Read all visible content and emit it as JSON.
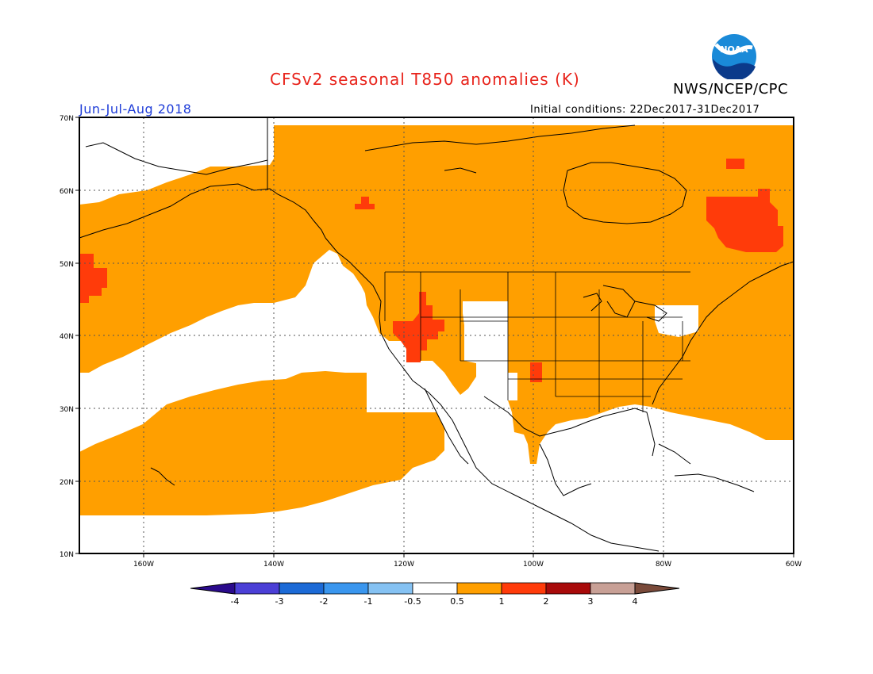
{
  "title": "CFSv2 seasonal T850 anomalies (K)",
  "agency": "NWS/NCEP/CPC",
  "logo_text": "NOAA",
  "season": "Jun-Jul-Aug 2018",
  "initial_conditions": "Initial conditions: 22Dec2017-31Dec2017",
  "axes": {
    "lon_labels": [
      "160W",
      "140W",
      "120W",
      "100W",
      "80W",
      "60W"
    ],
    "lat_labels": [
      "70N",
      "60N",
      "50N",
      "40N",
      "30N",
      "20N",
      "10N"
    ]
  },
  "colorbar": {
    "labels": [
      "-4",
      "-3",
      "-2",
      "-1",
      "-0.5",
      "0.5",
      "1",
      "2",
      "3",
      "4"
    ],
    "colors": [
      "#2a0a8c",
      "#4b3fd6",
      "#1c6ad6",
      "#3a96ee",
      "#85c2f3",
      "#ffffff",
      "#ff9f00",
      "#ff3b0a",
      "#a80a0a",
      "#c8a096",
      "#7a4a3a"
    ]
  },
  "colors": {
    "anomaly_0_5_to_1": "#ff9f00",
    "anomaly_1_to_2": "#ff3b0a",
    "title": "#e8231b",
    "season": "#1e3cd8"
  }
}
